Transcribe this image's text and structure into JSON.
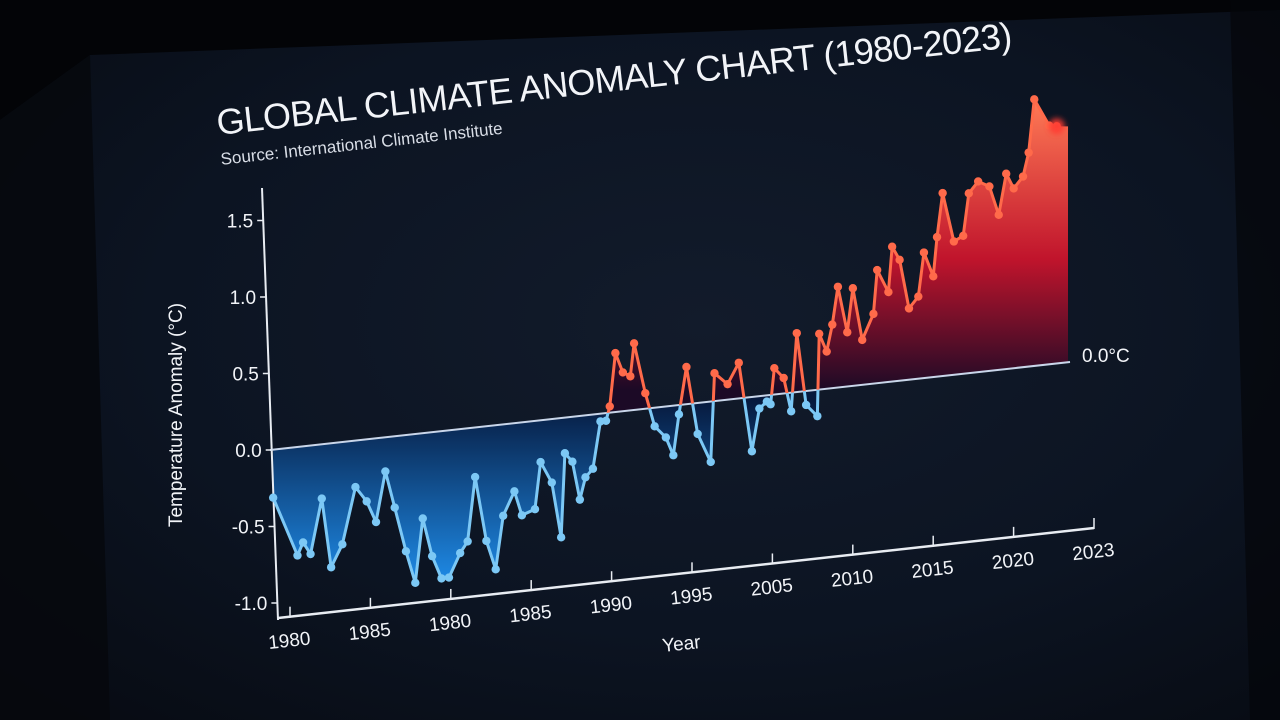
{
  "chart_data": {
    "type": "area",
    "title": "GLOBAL CLIMATE ANOMALY CHART (1980-2023)",
    "subtitle": "Source: International Climate Institute",
    "xlabel": "Year",
    "ylabel": "Temperature Anomaly (°C)",
    "baseline_label": "0.0°C",
    "ylim": [
      -1.0,
      1.7
    ],
    "y_ticks": [
      "1.5",
      "1.0",
      "0.5",
      "0.0",
      "-0.5",
      "-1.0"
    ],
    "y_tick_values": [
      1.5,
      1.0,
      0.5,
      0.0,
      -0.5,
      -1.0
    ],
    "x_tick_labels": [
      "1980",
      "1985",
      "1980",
      "1985",
      "1990",
      "1995",
      "2005",
      "2010",
      "2015",
      "2020",
      "2023"
    ],
    "grid": false,
    "legend": "none",
    "colors": {
      "positive": "#ff6a4a",
      "negative": "#7cc8f5",
      "baseline": "#c9d6ea"
    },
    "x": [
      1979.1,
      1980.4,
      1980.7,
      1981.1,
      1981.7,
      1982.2,
      1982.8,
      1983.5,
      1984.1,
      1984.6,
      1985.1,
      1985.6,
      1986.2,
      1986.7,
      1987.1,
      1987.6,
      1988.1,
      1988.5,
      1989.1,
      1989.5,
      1989.9,
      1990.5,
      1991.0,
      1991.4,
      1992.0,
      1992.4,
      1993.1,
      1993.4,
      1994.0,
      1994.5,
      1994.7,
      1995.1,
      1995.5,
      1995.8,
      1996.2,
      1996.6,
      1996.9,
      1997.1,
      1997.4,
      1997.8,
      1998.2,
      1998.4,
      1999.0,
      1999.5,
      2000.1,
      2000.5,
      2000.8,
      2001.2,
      2001.8,
      2002.5,
      2002.7,
      2003.4,
      2004.0,
      2004.7,
      2005.1,
      2005.5,
      2005.7,
      2005.9,
      2006.4,
      2006.8,
      2007.1,
      2007.6,
      2008.2,
      2008.3,
      2008.7,
      2009.0,
      2009.3,
      2009.8,
      2010.1,
      2010.6,
      2011.2,
      2011.4,
      2012.0,
      2012.2,
      2012.6,
      2013.1,
      2013.6,
      2013.9,
      2014.4,
      2014.6,
      2014.9,
      2015.5,
      2016.0,
      2016.3,
      2016.8,
      2017.4,
      2017.9,
      2018.3,
      2018.7,
      2019.2,
      2019.5,
      2019.8,
      2020.6,
      2021.0
    ],
    "values": [
      -0.31,
      -0.7,
      -0.62,
      -0.7,
      -0.35,
      -0.8,
      -0.66,
      -0.3,
      -0.4,
      -0.54,
      -0.22,
      -0.46,
      -0.75,
      -0.96,
      -0.55,
      -0.8,
      -0.95,
      -0.95,
      -0.8,
      -0.73,
      -0.32,
      -0.74,
      -0.93,
      -0.59,
      -0.44,
      -0.6,
      -0.57,
      -0.27,
      -0.41,
      -0.77,
      -0.23,
      -0.29,
      -0.54,
      -0.4,
      -0.35,
      -0.05,
      -0.05,
      0.04,
      0.38,
      0.25,
      0.22,
      0.43,
      0.1,
      -0.12,
      -0.2,
      -0.32,
      -0.06,
      0.24,
      -0.2,
      -0.39,
      0.18,
      0.1,
      0.23,
      -0.35,
      -0.08,
      -0.04,
      -0.06,
      0.17,
      0.1,
      -0.12,
      0.38,
      -0.09,
      -0.17,
      0.36,
      0.24,
      0.41,
      0.65,
      0.35,
      0.63,
      0.29,
      0.45,
      0.73,
      0.58,
      0.87,
      0.78,
      0.46,
      0.53,
      0.81,
      0.65,
      0.9,
      1.18,
      0.86,
      0.89,
      1.16,
      1.23,
      1.19,
      1.0,
      1.26,
      1.16,
      1.23,
      1.38,
      1.72,
      1.54,
      1.53
    ]
  }
}
